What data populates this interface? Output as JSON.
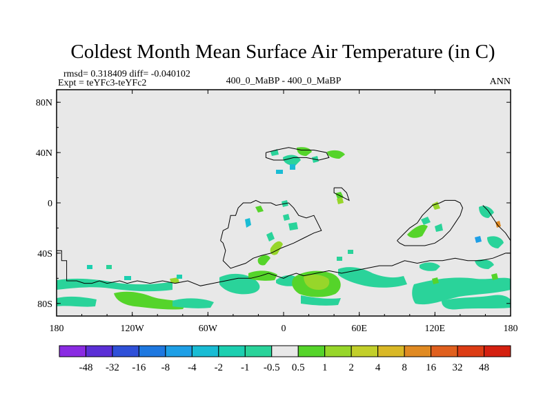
{
  "chart_data": {
    "type": "heatmap",
    "title": "Coldest Month Mean Surface Air Temperature (in C)",
    "stats_text": "rmsd= 0.318409 diff= -0.040102",
    "expt_text": "Expt = teYFc3-teYFc2",
    "center_text": "400_0_MaBP - 400_0_MaBP",
    "season_text": "ANN",
    "x_range": [
      -180,
      180
    ],
    "y_range": [
      -90,
      90
    ],
    "x_ticks": [
      {
        "value": -180,
        "label": "180"
      },
      {
        "value": -120,
        "label": "120W"
      },
      {
        "value": -60,
        "label": "60W"
      },
      {
        "value": 0,
        "label": "0"
      },
      {
        "value": 60,
        "label": "60E"
      },
      {
        "value": 120,
        "label": "120E"
      },
      {
        "value": 180,
        "label": "180"
      }
    ],
    "y_ticks": [
      {
        "value": 80,
        "label": "80N"
      },
      {
        "value": 40,
        "label": "40N"
      },
      {
        "value": 0,
        "label": "0"
      },
      {
        "value": -40,
        "label": "40S"
      },
      {
        "value": -80,
        "label": "80S"
      }
    ],
    "colorbar": {
      "labels": [
        "-48",
        "-32",
        "-16",
        "-8",
        "-4",
        "-2",
        "-1",
        "-0.5",
        "0.5",
        "1",
        "2",
        "4",
        "8",
        "16",
        "32",
        "48"
      ],
      "colors": [
        "#8a2be2",
        "#5b2fd6",
        "#2f50d8",
        "#1e78e0",
        "#1e9fe6",
        "#19bcd4",
        "#1ccfb0",
        "#2ad39a",
        "#e8e8e8",
        "#55d42a",
        "#97d62a",
        "#c2cf2a",
        "#d9b826",
        "#e08a22",
        "#e0601e",
        "#dc3c14",
        "#d42010"
      ]
    },
    "coastlines": [
      [
        [
          -180,
          -38
        ],
        [
          -176,
          -38
        ],
        [
          -176,
          -46
        ],
        [
          -172,
          -46
        ],
        [
          -172,
          -62
        ],
        [
          -164,
          -62
        ],
        [
          -158,
          -64
        ],
        [
          -152,
          -64
        ],
        [
          -146,
          -62
        ],
        [
          -140,
          -64
        ],
        [
          -130,
          -62
        ],
        [
          -124,
          -64
        ],
        [
          -116,
          -62
        ],
        [
          -106,
          -64
        ],
        [
          -96,
          -62
        ],
        [
          -86,
          -64
        ],
        [
          -76,
          -62
        ],
        [
          -66,
          -66
        ],
        [
          -56,
          -64
        ],
        [
          -46,
          -62
        ],
        [
          -36,
          -60
        ],
        [
          -26,
          -60
        ],
        [
          -18,
          -58
        ],
        [
          -12,
          -56
        ],
        [
          -6,
          -58
        ],
        [
          0,
          -60
        ],
        [
          4,
          -58
        ],
        [
          10,
          -56
        ],
        [
          16,
          -58
        ],
        [
          26,
          -56
        ],
        [
          36,
          -54
        ],
        [
          46,
          -56
        ],
        [
          56,
          -54
        ],
        [
          66,
          -52
        ],
        [
          76,
          -50
        ],
        [
          86,
          -50
        ],
        [
          96,
          -46
        ],
        [
          106,
          -48
        ],
        [
          116,
          -46
        ],
        [
          126,
          -46
        ],
        [
          136,
          -44
        ],
        [
          146,
          -46
        ],
        [
          156,
          -46
        ],
        [
          166,
          -44
        ],
        [
          176,
          -40
        ],
        [
          180,
          -40
        ]
      ],
      [
        [
          -50,
          -30
        ],
        [
          -48,
          -22
        ],
        [
          -44,
          -20
        ],
        [
          -42,
          -10
        ],
        [
          -38,
          -10
        ],
        [
          -36,
          -4
        ],
        [
          -32,
          0
        ],
        [
          -26,
          0
        ],
        [
          -22,
          2
        ],
        [
          -18,
          0
        ],
        [
          -10,
          0
        ],
        [
          -6,
          -2
        ],
        [
          4,
          0
        ],
        [
          8,
          -4
        ],
        [
          12,
          -10
        ],
        [
          18,
          -12
        ],
        [
          24,
          -10
        ],
        [
          28,
          -18
        ],
        [
          30,
          -22
        ],
        [
          24,
          -24
        ],
        [
          16,
          -28
        ],
        [
          8,
          -32
        ],
        [
          -2,
          -36
        ],
        [
          -10,
          -40
        ],
        [
          -18,
          -42
        ],
        [
          -24,
          -44
        ],
        [
          -30,
          -48
        ],
        [
          -36,
          -50
        ],
        [
          -42,
          -52
        ],
        [
          -48,
          -46
        ],
        [
          -46,
          -38
        ],
        [
          -48,
          -32
        ],
        [
          -50,
          -30
        ]
      ],
      [
        [
          90,
          -30
        ],
        [
          94,
          -26
        ],
        [
          100,
          -20
        ],
        [
          106,
          -16
        ],
        [
          110,
          -10
        ],
        [
          114,
          -6
        ],
        [
          118,
          -2
        ],
        [
          124,
          0
        ],
        [
          128,
          2
        ],
        [
          136,
          2
        ],
        [
          140,
          0
        ],
        [
          142,
          -4
        ],
        [
          140,
          -10
        ],
        [
          136,
          -16
        ],
        [
          132,
          -22
        ],
        [
          126,
          -28
        ],
        [
          120,
          -32
        ],
        [
          112,
          -34
        ],
        [
          104,
          -34
        ],
        [
          96,
          -34
        ],
        [
          92,
          -32
        ],
        [
          90,
          -30
        ]
      ],
      [
        [
          158,
          -2
        ],
        [
          162,
          -6
        ],
        [
          166,
          -12
        ],
        [
          170,
          -18
        ],
        [
          176,
          -24
        ],
        [
          180,
          -30
        ]
      ],
      [
        [
          -14,
          40
        ],
        [
          -6,
          42
        ],
        [
          4,
          44
        ],
        [
          14,
          42
        ],
        [
          24,
          42
        ],
        [
          34,
          40
        ],
        [
          36,
          36
        ],
        [
          28,
          34
        ],
        [
          18,
          36
        ],
        [
          8,
          36
        ],
        [
          0,
          34
        ],
        [
          -8,
          34
        ],
        [
          -14,
          36
        ],
        [
          -14,
          40
        ]
      ],
      [
        [
          40,
          12
        ],
        [
          46,
          12
        ],
        [
          50,
          8
        ],
        [
          52,
          2
        ],
        [
          48,
          4
        ],
        [
          44,
          6
        ],
        [
          40,
          8
        ],
        [
          40,
          12
        ]
      ]
    ]
  }
}
